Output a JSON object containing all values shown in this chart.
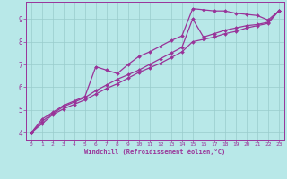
{
  "title": "",
  "xlabel": "Windchill (Refroidissement éolien,°C)",
  "ylabel": "",
  "bg_color": "#b8e8e8",
  "line_color": "#993399",
  "grid_color": "#99cccc",
  "xlim": [
    -0.5,
    23.5
  ],
  "ylim": [
    3.7,
    9.75
  ],
  "xticks": [
    0,
    1,
    2,
    3,
    4,
    5,
    6,
    7,
    8,
    9,
    10,
    11,
    12,
    13,
    14,
    15,
    16,
    17,
    18,
    19,
    20,
    21,
    22,
    23
  ],
  "yticks": [
    4,
    5,
    6,
    7,
    8,
    9
  ],
  "curve1": {
    "x": [
      0,
      1,
      2,
      3,
      4,
      5,
      6,
      7,
      8,
      9,
      10,
      11,
      12,
      13,
      14,
      15,
      16,
      17,
      18,
      19,
      20,
      21,
      22,
      23
    ],
    "y": [
      4.0,
      4.6,
      4.9,
      5.2,
      5.4,
      5.6,
      6.9,
      6.75,
      6.6,
      7.0,
      7.35,
      7.55,
      7.8,
      8.05,
      8.25,
      9.45,
      9.4,
      9.35,
      9.35,
      9.25,
      9.2,
      9.15,
      8.95,
      9.35
    ]
  },
  "curve2": {
    "x": [
      0,
      1,
      2,
      3,
      4,
      5,
      6,
      7,
      8,
      9,
      10,
      11,
      12,
      13,
      14,
      15,
      16,
      17,
      18,
      19,
      20,
      21,
      22,
      23
    ],
    "y": [
      4.0,
      4.5,
      4.85,
      5.15,
      5.35,
      5.55,
      5.85,
      6.1,
      6.35,
      6.55,
      6.75,
      7.0,
      7.25,
      7.5,
      7.75,
      9.0,
      8.2,
      8.35,
      8.5,
      8.6,
      8.7,
      8.75,
      8.85,
      9.35
    ]
  },
  "curve3": {
    "x": [
      0,
      1,
      2,
      3,
      4,
      5,
      6,
      7,
      8,
      9,
      10,
      11,
      12,
      13,
      14,
      15,
      16,
      17,
      18,
      19,
      20,
      21,
      22,
      23
    ],
    "y": [
      4.0,
      4.4,
      4.8,
      5.05,
      5.25,
      5.45,
      5.7,
      5.95,
      6.15,
      6.4,
      6.65,
      6.85,
      7.05,
      7.3,
      7.55,
      8.0,
      8.1,
      8.2,
      8.35,
      8.45,
      8.6,
      8.7,
      8.8,
      9.35
    ]
  }
}
